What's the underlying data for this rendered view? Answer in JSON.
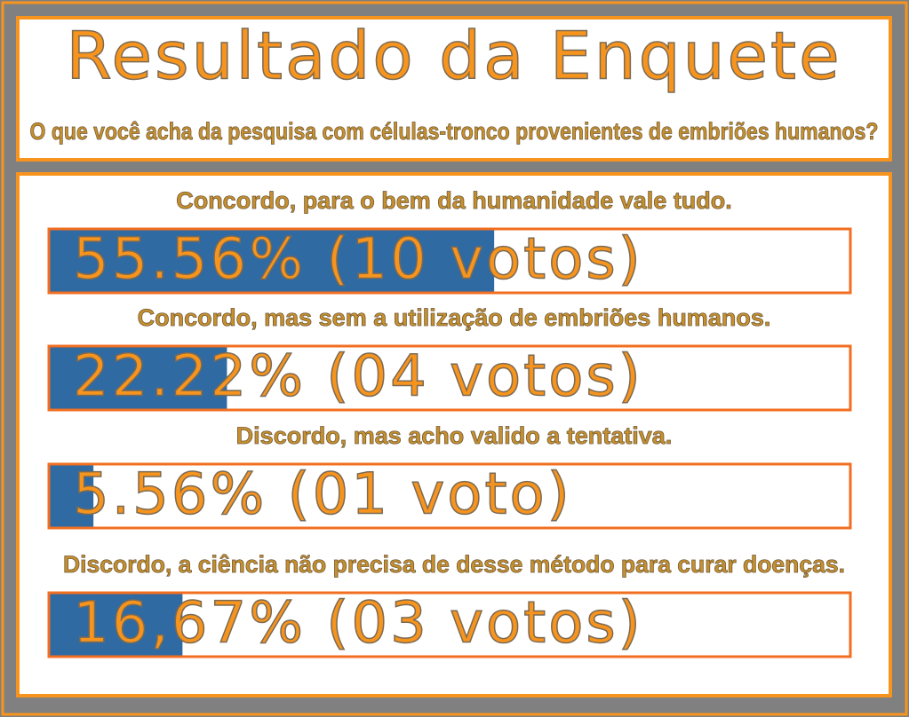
{
  "chart_data": {
    "type": "bar",
    "title": "Resultado da Enquete",
    "subtitle": "O que você acha da pesquisa com células-tronco provenientes de embriões humanos?",
    "categories": [
      "Concordo, para o bem da humanidade vale tudo.",
      "Concordo, mas sem a utilização de embriões humanos.",
      "Discordo, mas acho valido a tentativa.",
      "Discordo, a ciência não precisa de desse método para curar doenças."
    ],
    "values": [
      55.56,
      22.22,
      5.56,
      16.67
    ],
    "value_labels": [
      "55.56% (10 votos)",
      "22.22% (04 votos)",
      "5.56% (01 voto)",
      "16,67% (03 votos)"
    ],
    "xlim": [
      0,
      100
    ],
    "color": "#2f6aa3"
  }
}
